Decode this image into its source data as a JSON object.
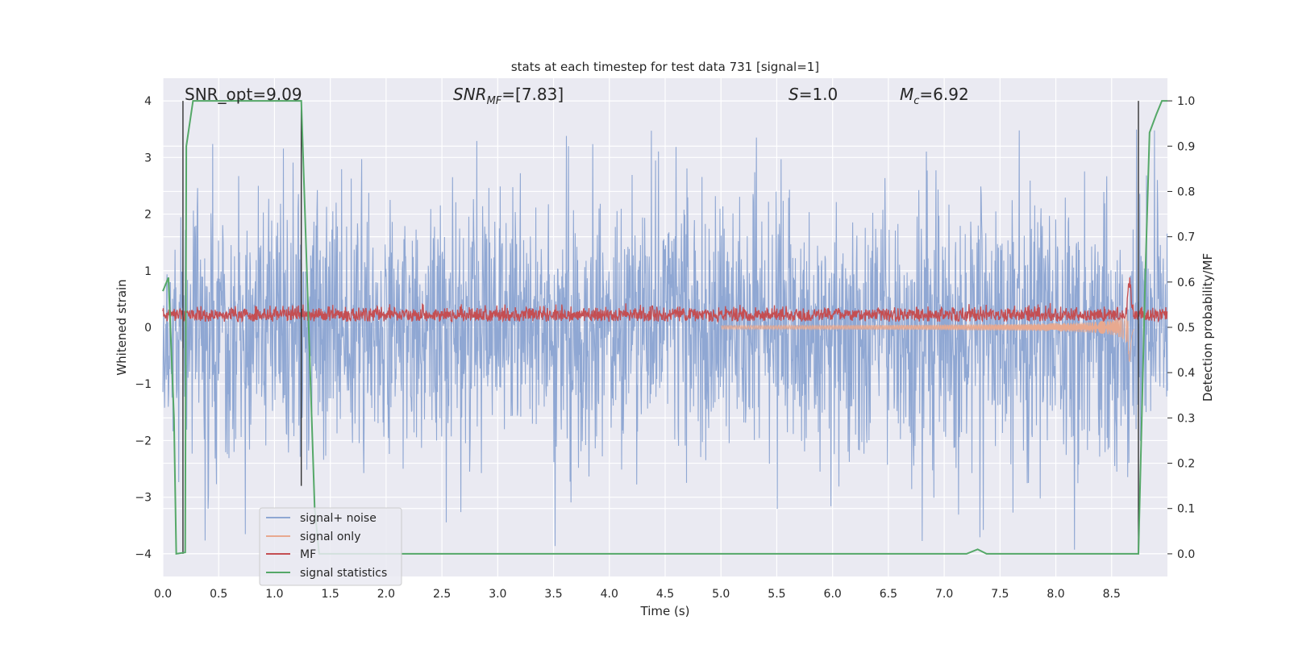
{
  "chart_data": {
    "type": "line",
    "title": "stats at each timestep for test data 731 [signal=1]",
    "xlabel": "Time (s)",
    "ylabel": "Whitened strain",
    "ylabel_right": "Detection probability/MF",
    "xlim": [
      0.0,
      9.0
    ],
    "ylim": [
      -4.4,
      4.4
    ],
    "ylim_right": [
      -0.05,
      1.05
    ],
    "xticks": [
      "0.0",
      "0.5",
      "1.0",
      "1.5",
      "2.0",
      "2.5",
      "3.0",
      "3.5",
      "4.0",
      "4.5",
      "5.0",
      "5.5",
      "6.0",
      "6.5",
      "7.0",
      "7.5",
      "8.0",
      "8.5"
    ],
    "yticks": [
      "4",
      "3",
      "2",
      "1",
      "0",
      "−1",
      "−2",
      "−3",
      "−4"
    ],
    "yticks_right": [
      "1.0",
      "0.9",
      "0.8",
      "0.7",
      "0.6",
      "0.5",
      "0.4",
      "0.3",
      "0.2",
      "0.1",
      "0.0"
    ],
    "grid": true,
    "legend_position": "lower-left",
    "annotations": {
      "snr_opt": "SNR_opt=9.09",
      "snr_mf_prefix": "SNR",
      "snr_mf_sub": "MF",
      "snr_mf_value": "=[7.83]",
      "s_symbol": "S",
      "s_value": "=1.0",
      "mc_symbol": "M",
      "mc_sub": "c",
      "mc_value": "=6.92"
    },
    "vertical_markers_x": [
      0.18,
      1.24,
      8.74
    ],
    "series": [
      {
        "name": "signal+ noise",
        "color": "#8fa7d3",
        "style": "noise",
        "amplitude_envelope": {
          "x": [
            0.0,
            9.0
          ],
          "max_abs": [
            3.5,
            3.5
          ]
        }
      },
      {
        "name": "signal only",
        "color": "#e8a98f",
        "style": "chirp",
        "chirp": {
          "start_x": 5.0,
          "merger_x": 8.66,
          "end_x": 8.7,
          "peak_y": 1.0,
          "trough_y": -0.6
        }
      },
      {
        "name": "MF",
        "color": "#c44e52",
        "style": "band",
        "level_y": 0.2,
        "spread_y": 0.2
      },
      {
        "name": "signal statistics",
        "color": "#55a868",
        "axis": "right",
        "x": [
          0.0,
          0.05,
          0.1,
          0.12,
          0.2,
          0.21,
          0.27,
          0.3,
          0.6,
          1.0,
          1.24,
          1.36,
          1.4,
          2.0,
          5.0,
          7.2,
          7.3,
          7.38,
          8.0,
          8.72,
          8.74,
          8.8,
          8.84,
          8.9,
          8.95,
          9.0
        ],
        "y": [
          0.58,
          0.61,
          0.3,
          0.0,
          0.003,
          0.9,
          1.0,
          1.0,
          1.0,
          1.0,
          1.0,
          0.1,
          0.0,
          0.0,
          0.0,
          0.0,
          0.01,
          0.0,
          0.0,
          0.0,
          0.0,
          0.6,
          0.93,
          0.97,
          1.0,
          1.0
        ]
      }
    ]
  }
}
